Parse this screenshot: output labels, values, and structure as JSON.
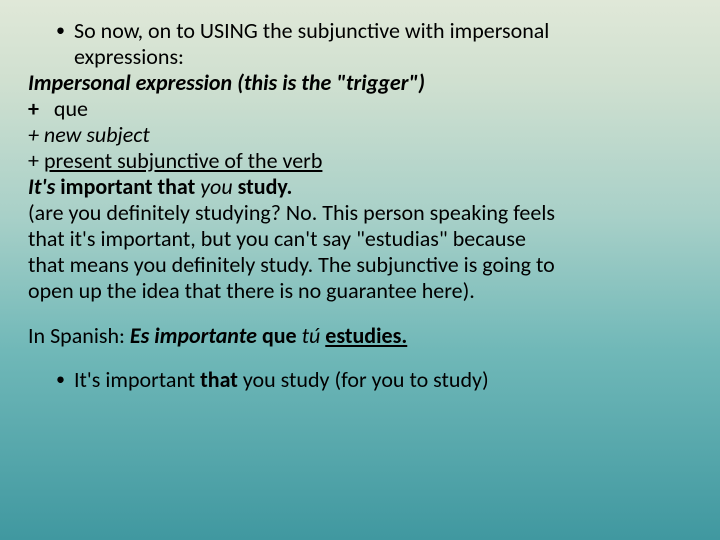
{
  "bullet1_a": "So now, on to USING the subjunctive with impersonal",
  "bullet1_b": "expressions:",
  "line_impersonal": "Impersonal expression (this is the \"trigger\")",
  "line_que_plus": "+",
  "line_que": "que",
  "line_newsubj": "+ new subject",
  "line_presub_plus": " + ",
  "line_presub": "present subjunctive of the verb",
  "ex_its": "It's",
  "ex_imp": " important ",
  "ex_that": "that ",
  "ex_you": "you",
  "ex_study": " study.",
  "paren1": "(are you definitely studying? No. This person speaking feels",
  "paren2": "that it's important, but you can't say \"estudias\" because",
  "paren3": "that means you definitely study. The subjunctive is going to",
  "paren4": "open up the idea that there is no guarantee here).",
  "sp_label": "In Spanish: ",
  "sp_es": "Es importante ",
  "sp_que": "que ",
  "sp_tu": "tú ",
  "sp_est": "estudies.",
  "b2_a": "It's important ",
  "b2_b": "that ",
  "b2_c": "you study (for you to study)"
}
